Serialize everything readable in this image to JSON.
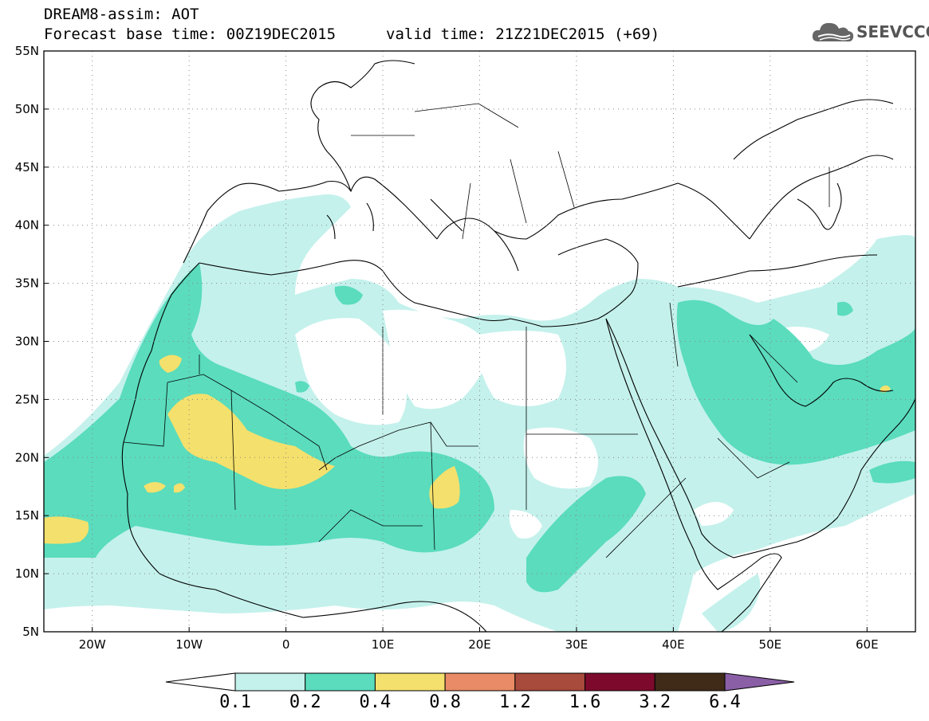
{
  "header": {
    "title_line1": "DREAM8-assim: AOT",
    "title_line2": "Forecast base time: 00Z19DEC2015",
    "valid_time": "valid time: 21Z21DEC2015 (+69)",
    "logo_text": "SEEVCCC",
    "logo_icon": "cloud-icon"
  },
  "map": {
    "lat_labels": [
      "55N",
      "50N",
      "45N",
      "40N",
      "35N",
      "30N",
      "25N",
      "20N",
      "15N",
      "10N",
      "5N"
    ],
    "lon_labels": [
      "20W",
      "10W",
      "0",
      "10E",
      "20E",
      "30E",
      "40E",
      "50E",
      "60E"
    ],
    "lon_range": [
      -25,
      65
    ],
    "lat_range": [
      5,
      55
    ],
    "grid": "dotted"
  },
  "colorbar": {
    "labels": [
      "0.1",
      "0.2",
      "0.4",
      "0.8",
      "1.2",
      "1.6",
      "3.2",
      "6.4"
    ],
    "colors": [
      "#ffffff",
      "#c4f1ec",
      "#5adcbd",
      "#f4e06c",
      "#e98b66",
      "#a84a3c",
      "#7d0a2c",
      "#3f2b18",
      "#8a5fa6"
    ]
  }
}
